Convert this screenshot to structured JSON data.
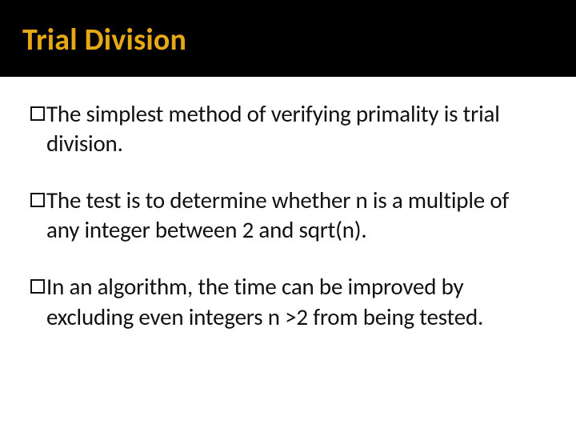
{
  "slide": {
    "title": "Trial Division",
    "title_color": "#e6a817",
    "title_background": "#000000",
    "title_fontsize": 38,
    "body_fontsize": 29,
    "body_color": "#111111",
    "background_color": "#ffffff",
    "bullets": [
      {
        "text": "The simplest method of verifying primality is trial division."
      },
      {
        "text": "The test is to determine whether n is a multiple of any integer between 2 and sqrt(n)."
      },
      {
        "text": "In an algorithm, the time can be improved by excluding even integers n >2 from being tested."
      }
    ]
  }
}
